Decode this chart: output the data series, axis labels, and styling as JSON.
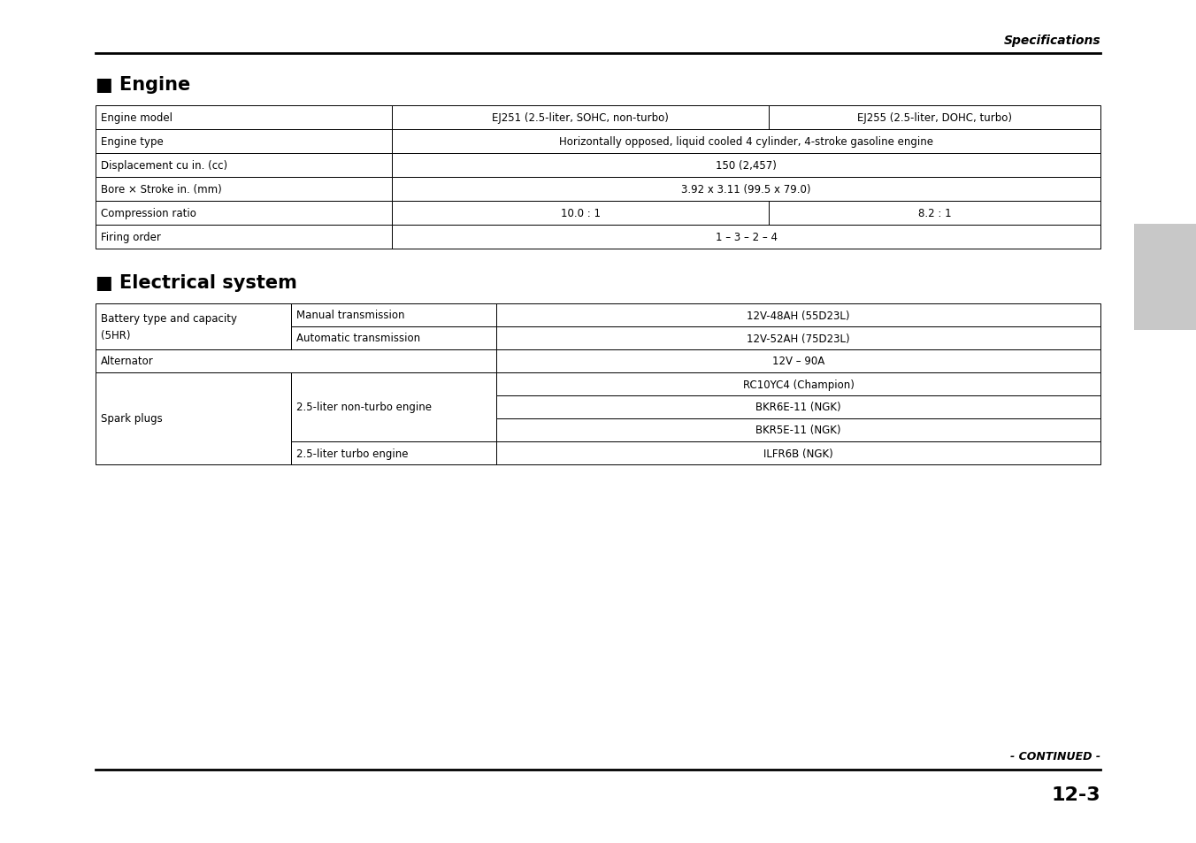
{
  "page_title_right": "Specifications",
  "section1_title": "■ Engine",
  "section2_title": "■ Electrical system",
  "footer_continued": "- CONTINUED -",
  "footer_page": "12-3",
  "engine_rows": [
    {
      "label": "Engine model",
      "col2": "EJ251 (2.5-liter, SOHC, non-turbo)",
      "col3": "EJ255 (2.5-liter, DOHC, turbo)",
      "span": false
    },
    {
      "label": "Engine type",
      "col2": "Horizontally opposed, liquid cooled 4 cylinder, 4-stroke gasoline engine",
      "col3": "",
      "span": true
    },
    {
      "label": "Displacement cu in. (cc)",
      "col2": "150 (2,457)",
      "col3": "",
      "span": true
    },
    {
      "label": "Bore × Stroke in. (mm)",
      "col2": "3.92 x 3.11 (99.5 x 79.0)",
      "col3": "",
      "span": true
    },
    {
      "label": "Compression ratio",
      "col2": "10.0 : 1",
      "col3": "8.2 : 1",
      "span": false
    },
    {
      "label": "Firing order",
      "col2": "1 – 3 – 2 – 4",
      "col3": "",
      "span": true
    }
  ],
  "background_color": "#ffffff",
  "line_color": "#000000",
  "gray_box_color": "#cccccc"
}
